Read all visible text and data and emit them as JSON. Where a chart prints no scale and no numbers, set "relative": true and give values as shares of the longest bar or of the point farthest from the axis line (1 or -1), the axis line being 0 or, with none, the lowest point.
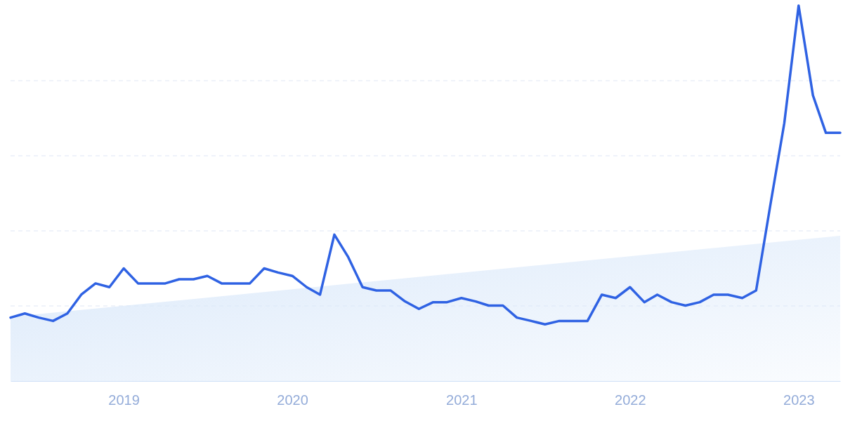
{
  "chart_data": {
    "type": "line",
    "relative": true,
    "grid": "y",
    "xlim": [
      "2018-05",
      "2023-04"
    ],
    "xticks": [
      "2019",
      "2020",
      "2021",
      "2022",
      "2023"
    ],
    "series": [
      {
        "type": "area",
        "color": "#dbe9fa",
        "x": [
          "2018-05",
          "2023-04"
        ],
        "values": [
          0.171,
          0.387
        ]
      },
      {
        "color": "#2f62e3",
        "x": [
          "2018-05",
          "2018-06",
          "2018-07",
          "2018-08",
          "2018-09",
          "2018-10",
          "2018-11",
          "2018-12",
          "2019-01",
          "2019-02",
          "2019-03",
          "2019-04",
          "2019-05",
          "2019-06",
          "2019-07",
          "2019-08",
          "2019-09",
          "2019-10",
          "2019-11",
          "2019-12",
          "2020-01",
          "2020-02",
          "2020-03",
          "2020-04",
          "2020-05",
          "2020-06",
          "2020-07",
          "2020-08",
          "2020-09",
          "2020-10",
          "2020-11",
          "2020-12",
          "2021-01",
          "2021-02",
          "2021-03",
          "2021-04",
          "2021-05",
          "2021-06",
          "2021-07",
          "2021-08",
          "2021-09",
          "2021-10",
          "2021-11",
          "2021-12",
          "2022-01",
          "2022-02",
          "2022-03",
          "2022-04",
          "2022-05",
          "2022-06",
          "2022-07",
          "2022-08",
          "2022-09",
          "2022-10",
          "2022-11",
          "2022-12",
          "2023-01",
          "2023-02",
          "2023-03",
          "2023-04"
        ],
        "values": [
          0.169,
          0.18,
          0.169,
          0.16,
          0.18,
          0.23,
          0.26,
          0.25,
          0.3,
          0.26,
          0.26,
          0.26,
          0.271,
          0.271,
          0.28,
          0.26,
          0.26,
          0.26,
          0.3,
          0.289,
          0.28,
          0.25,
          0.23,
          0.39,
          0.33,
          0.25,
          0.241,
          0.241,
          0.212,
          0.192,
          0.21,
          0.21,
          0.221,
          0.212,
          0.201,
          0.201,
          0.169,
          0.16,
          0.151,
          0.16,
          0.16,
          0.16,
          0.23,
          0.221,
          0.25,
          0.21,
          0.23,
          0.21,
          0.201,
          0.21,
          0.23,
          0.23,
          0.221,
          0.241,
          0.47,
          0.687,
          1,
          0.761,
          0.661,
          0.661
        ]
      }
    ]
  }
}
